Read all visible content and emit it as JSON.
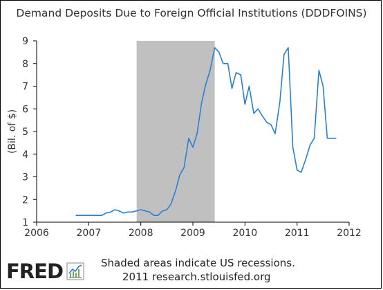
{
  "title": "Demand Deposits Due to Foreign Official Institutions (DDDFOINS)",
  "footnote": {
    "recession_note": "Shaded areas indicate US recessions.",
    "source": "2011 research.stlouisfed.org"
  },
  "logo_text": "FRED",
  "colors": {
    "line": "#2a7fd4",
    "recession": "#c0c0c0",
    "axis": "#000000",
    "grid": "#000000"
  },
  "chart_data": {
    "type": "line",
    "title": "Demand Deposits Due to Foreign Official Institutions (DDDFOINS)",
    "xlabel": "",
    "ylabel": "(Bil. of $)",
    "xlim": [
      2006,
      2012
    ],
    "ylim": [
      1,
      9
    ],
    "x_ticks": [
      "2006",
      "2007",
      "2008",
      "2009",
      "2010",
      "2011",
      "2012"
    ],
    "y_ticks": [
      "1",
      "2",
      "3",
      "4",
      "5",
      "6",
      "7",
      "8",
      "9"
    ],
    "grid": false,
    "recession": {
      "start": 2007.92,
      "end": 2009.42,
      "label": "Shaded areas indicate US recessions."
    },
    "series": [
      {
        "x": [
          2006.75,
          2006.83,
          2006.92,
          2007.0,
          2007.08,
          2007.17,
          2007.25,
          2007.33,
          2007.42,
          2007.5,
          2007.58,
          2007.67,
          2007.75,
          2007.83,
          2007.92,
          2008.0,
          2008.08,
          2008.17,
          2008.25,
          2008.33,
          2008.42,
          2008.5,
          2008.58,
          2008.67,
          2008.75,
          2008.83,
          2008.92,
          2009.0,
          2009.08,
          2009.17,
          2009.25,
          2009.33,
          2009.42,
          2009.5,
          2009.58,
          2009.67,
          2009.75,
          2009.83,
          2009.92,
          2010.0,
          2010.08,
          2010.17,
          2010.25,
          2010.33,
          2010.42,
          2010.5,
          2010.58,
          2010.67,
          2010.75,
          2010.83,
          2010.92,
          2011.0,
          2011.08,
          2011.17,
          2011.25,
          2011.33,
          2011.42,
          2011.5,
          2011.58,
          2011.67,
          2011.75
        ],
        "values": [
          1.3,
          1.3,
          1.3,
          1.3,
          1.3,
          1.3,
          1.3,
          1.4,
          1.45,
          1.55,
          1.5,
          1.4,
          1.45,
          1.45,
          1.5,
          1.55,
          1.5,
          1.45,
          1.3,
          1.3,
          1.5,
          1.55,
          1.8,
          2.4,
          3.1,
          3.4,
          4.7,
          4.3,
          4.9,
          6.3,
          7.1,
          7.7,
          8.7,
          8.5,
          8.0,
          8.0,
          6.9,
          7.6,
          7.5,
          6.2,
          7.0,
          5.8,
          6.0,
          5.7,
          5.4,
          5.3,
          4.9,
          6.3,
          8.4,
          8.7,
          4.3,
          3.3,
          3.2,
          3.8,
          4.4,
          4.7,
          7.7,
          7.0,
          4.7,
          4.7,
          4.7
        ]
      }
    ]
  }
}
